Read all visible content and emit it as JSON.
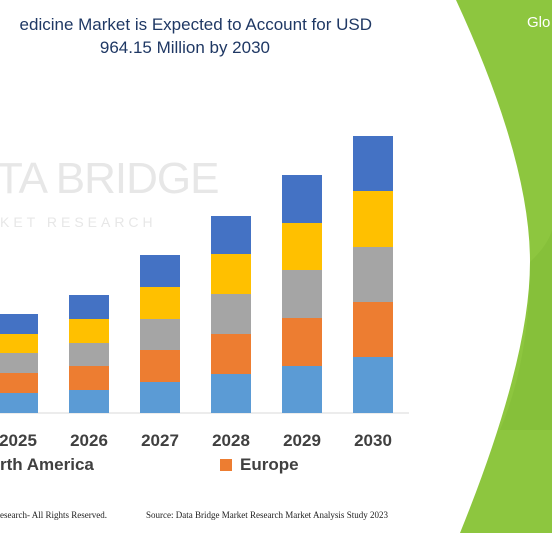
{
  "header": {
    "title_line1": "edicine Market is Expected to Account for USD",
    "title_line2": "964.15 Million by 2030",
    "side_label": "Glo"
  },
  "watermark": {
    "line1": "TA BRIDGE",
    "line2": "KET RESEARCH"
  },
  "colors": {
    "title": "#1f3864",
    "green_panel": "#8dc63f",
    "series": [
      "#5b9bd5",
      "#ed7d31",
      "#a5a5a5",
      "#ffc000",
      "#4472c4"
    ]
  },
  "chart_data": {
    "type": "bar",
    "stacked": true,
    "categories": [
      "2025",
      "2026",
      "2027",
      "2028",
      "2029",
      "2030"
    ],
    "series": [
      {
        "name": "rth America",
        "values": [
          20,
          23,
          31,
          39,
          47,
          56
        ]
      },
      {
        "name": "Europe",
        "values": [
          20,
          24,
          32,
          40,
          48,
          55
        ]
      },
      {
        "name": "",
        "values": [
          20,
          23,
          31,
          40,
          48,
          55
        ]
      },
      {
        "name": "",
        "values": [
          19,
          24,
          32,
          40,
          47,
          56
        ]
      },
      {
        "name": "",
        "values": [
          20,
          24,
          32,
          38,
          48,
          55
        ]
      }
    ],
    "title": "edicine Market is Expected to Account for USD 964.15 Million by 2030",
    "legend": "bottom",
    "grid": false
  },
  "legend": [
    {
      "label": "rth America",
      "color": "#5b9bd5"
    },
    {
      "label": "Europe",
      "color": "#ed7d31"
    }
  ],
  "footer": {
    "left": "esearch- All Rights Reserved.",
    "right": "Source: Data Bridge Market Research Market Analysis Study 2023"
  }
}
